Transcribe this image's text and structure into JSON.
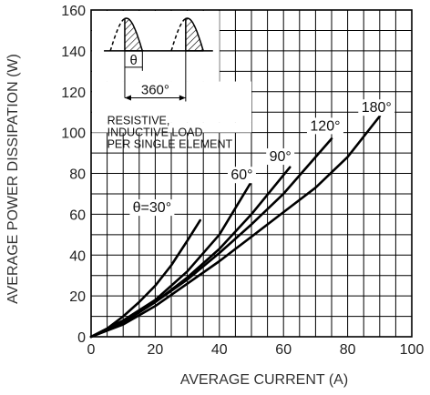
{
  "chart_data": {
    "type": "line",
    "xlabel": "AVERAGE CURRENT (A)",
    "ylabel": "AVERAGE POWER DISSIPATION (W)",
    "xlim": [
      0,
      100
    ],
    "ylim": [
      0,
      160
    ],
    "x_ticks": [
      "0",
      "20",
      "40",
      "60",
      "80",
      "100"
    ],
    "y_ticks": [
      "0",
      "20",
      "40",
      "60",
      "80",
      "100",
      "120",
      "140",
      "160"
    ],
    "grid": true,
    "note_lines": [
      "RESISTIVE,",
      "INDUCTIVE LOAD",
      "PER SINGLE ELEMENT"
    ],
    "inset": {
      "theta_label": "θ",
      "period_label": "360°"
    },
    "series": [
      {
        "name": "θ=30°",
        "x": [
          0,
          5,
          10,
          15,
          20,
          25,
          30,
          34
        ],
        "y": [
          0,
          4,
          10,
          17,
          25,
          35,
          47,
          57
        ]
      },
      {
        "name": "60°",
        "x": [
          0,
          10,
          20,
          30,
          40,
          50
        ],
        "y": [
          0,
          8,
          18,
          32,
          50,
          76
        ]
      },
      {
        "name": "90°",
        "x": [
          0,
          10,
          20,
          30,
          40,
          50,
          62
        ],
        "y": [
          0,
          7,
          17,
          29,
          43,
          60,
          83
        ]
      },
      {
        "name": "120°",
        "x": [
          0,
          10,
          20,
          30,
          40,
          50,
          60,
          75
        ],
        "y": [
          0,
          7,
          17,
          28,
          41,
          55,
          70,
          97
        ]
      },
      {
        "name": "180°",
        "x": [
          0,
          10,
          20,
          30,
          40,
          50,
          60,
          70,
          80,
          90
        ],
        "y": [
          0,
          6,
          15,
          26,
          37,
          49,
          61,
          73,
          88,
          108
        ]
      }
    ]
  }
}
